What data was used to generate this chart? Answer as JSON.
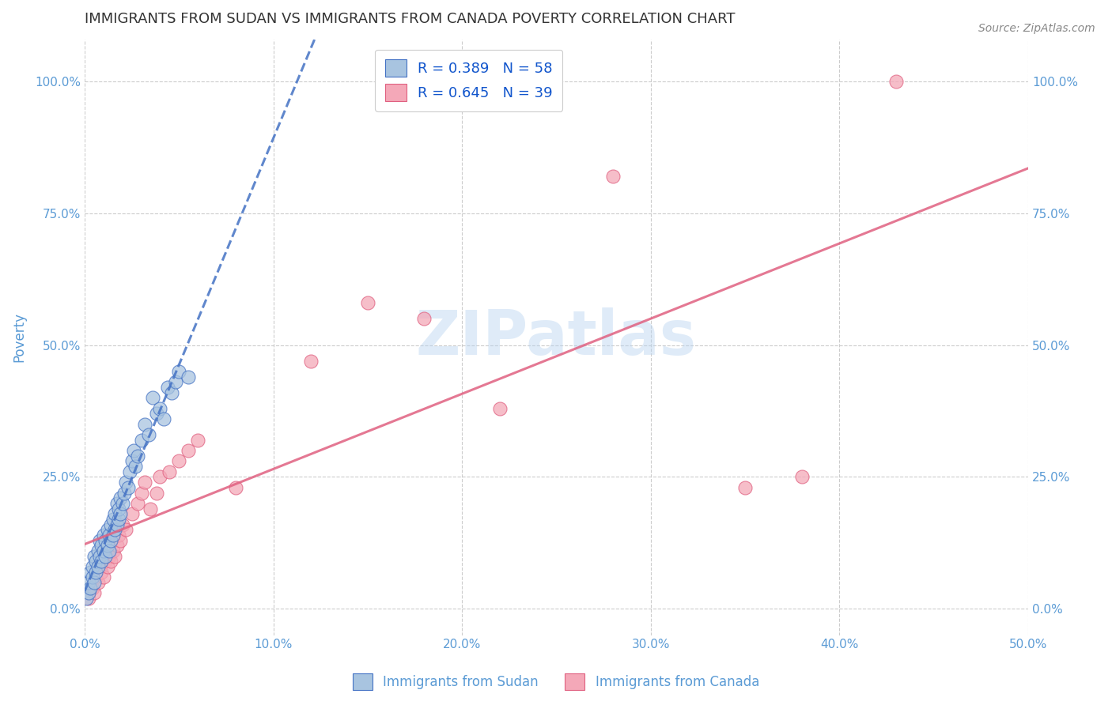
{
  "title": "IMMIGRANTS FROM SUDAN VS IMMIGRANTS FROM CANADA POVERTY CORRELATION CHART",
  "source": "Source: ZipAtlas.com",
  "ylabel": "Poverty",
  "xlim": [
    0.0,
    0.5
  ],
  "ylim": [
    -0.05,
    1.08
  ],
  "xtick_labels": [
    "0.0%",
    "10.0%",
    "20.0%",
    "30.0%",
    "40.0%",
    "50.0%"
  ],
  "xtick_vals": [
    0.0,
    0.1,
    0.2,
    0.3,
    0.4,
    0.5
  ],
  "ytick_labels": [
    "0.0%",
    "25.0%",
    "50.0%",
    "75.0%",
    "100.0%"
  ],
  "ytick_vals": [
    0.0,
    0.25,
    0.5,
    0.75,
    1.0
  ],
  "sudan_color": "#a8c4e0",
  "canada_color": "#f4a8b8",
  "sudan_line_color": "#4472c4",
  "canada_line_color": "#e06080",
  "sudan_R": 0.389,
  "sudan_N": 58,
  "canada_R": 0.645,
  "canada_N": 39,
  "legend_label_sudan": "Immigrants from Sudan",
  "legend_label_canada": "Immigrants from Canada",
  "watermark": "ZIPatlas",
  "background_color": "#ffffff",
  "grid_color": "#cccccc",
  "title_color": "#333333",
  "axis_label_color": "#5b9bd5",
  "legend_text_color": "#1155cc",
  "sudan_scatter_x": [
    0.001,
    0.002,
    0.002,
    0.003,
    0.003,
    0.004,
    0.004,
    0.005,
    0.005,
    0.006,
    0.006,
    0.007,
    0.007,
    0.008,
    0.008,
    0.009,
    0.009,
    0.01,
    0.01,
    0.011,
    0.011,
    0.012,
    0.012,
    0.013,
    0.013,
    0.014,
    0.014,
    0.015,
    0.015,
    0.016,
    0.016,
    0.017,
    0.017,
    0.018,
    0.018,
    0.019,
    0.019,
    0.02,
    0.021,
    0.022,
    0.023,
    0.024,
    0.025,
    0.026,
    0.027,
    0.028,
    0.03,
    0.032,
    0.034,
    0.036,
    0.038,
    0.04,
    0.042,
    0.044,
    0.046,
    0.048,
    0.05,
    0.055
  ],
  "sudan_scatter_y": [
    0.02,
    0.03,
    0.05,
    0.04,
    0.07,
    0.06,
    0.08,
    0.05,
    0.1,
    0.07,
    0.09,
    0.08,
    0.11,
    0.1,
    0.13,
    0.09,
    0.12,
    0.11,
    0.14,
    0.1,
    0.13,
    0.12,
    0.15,
    0.11,
    0.14,
    0.13,
    0.16,
    0.14,
    0.17,
    0.15,
    0.18,
    0.16,
    0.2,
    0.17,
    0.19,
    0.18,
    0.21,
    0.2,
    0.22,
    0.24,
    0.23,
    0.26,
    0.28,
    0.3,
    0.27,
    0.29,
    0.32,
    0.35,
    0.33,
    0.4,
    0.37,
    0.38,
    0.36,
    0.42,
    0.41,
    0.43,
    0.45,
    0.44
  ],
  "canada_scatter_x": [
    0.002,
    0.004,
    0.005,
    0.006,
    0.007,
    0.008,
    0.009,
    0.01,
    0.011,
    0.012,
    0.013,
    0.014,
    0.015,
    0.016,
    0.017,
    0.018,
    0.019,
    0.02,
    0.022,
    0.025,
    0.028,
    0.03,
    0.032,
    0.035,
    0.038,
    0.04,
    0.045,
    0.05,
    0.055,
    0.06,
    0.08,
    0.12,
    0.15,
    0.18,
    0.22,
    0.28,
    0.35,
    0.38,
    0.43
  ],
  "canada_scatter_y": [
    0.02,
    0.04,
    0.03,
    0.06,
    0.05,
    0.08,
    0.07,
    0.06,
    0.09,
    0.08,
    0.1,
    0.09,
    0.11,
    0.1,
    0.12,
    0.14,
    0.13,
    0.16,
    0.15,
    0.18,
    0.2,
    0.22,
    0.24,
    0.19,
    0.22,
    0.25,
    0.26,
    0.28,
    0.3,
    0.32,
    0.23,
    0.47,
    0.58,
    0.55,
    0.38,
    0.82,
    0.23,
    0.25,
    1.0
  ]
}
